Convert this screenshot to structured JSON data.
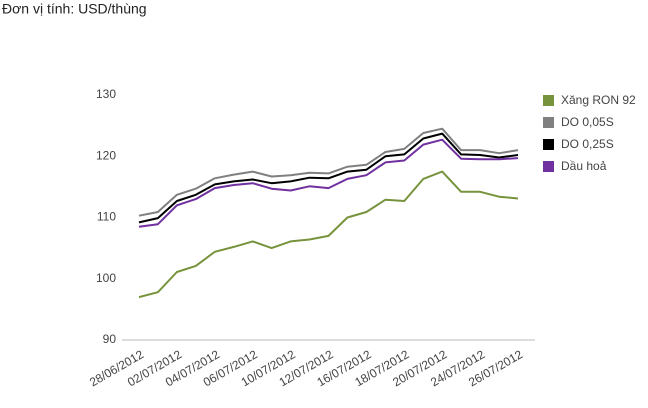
{
  "chart_data": {
    "type": "line",
    "subtitle": "Đơn vị tính: USD/thùng",
    "categories": [
      "28/06/2012",
      null,
      "02/07/2012",
      null,
      "04/07/2012",
      null,
      "06/07/2012",
      null,
      "10/07/2012",
      null,
      "12/07/2012",
      null,
      "16/07/2012",
      null,
      "18/07/2012",
      null,
      "20/07/2012",
      null,
      "24/07/2012",
      null,
      "26/07/2012"
    ],
    "series": [
      {
        "name": "Xăng RON 92",
        "color": "#77933c",
        "values": [
          97.0,
          97.8,
          101.1,
          102.1,
          104.4,
          105.2,
          106.1,
          105.0,
          106.1,
          106.4,
          107.0,
          110.0,
          110.9,
          112.9,
          112.7,
          116.3,
          117.5,
          114.2,
          114.2,
          113.4,
          113.1
        ]
      },
      {
        "name": "DO 0,05S",
        "color": "#808080",
        "values": [
          110.3,
          110.9,
          113.7,
          114.7,
          116.4,
          117.0,
          117.5,
          116.7,
          116.9,
          117.3,
          117.2,
          118.3,
          118.6,
          120.7,
          121.2,
          123.8,
          124.5,
          121.0,
          121.0,
          120.5,
          121.0
        ]
      },
      {
        "name": "DO 0,25S",
        "color": "#000000",
        "values": [
          109.2,
          109.9,
          112.7,
          113.7,
          115.4,
          115.9,
          116.2,
          115.6,
          115.9,
          116.5,
          116.4,
          117.5,
          117.8,
          120.0,
          120.3,
          122.9,
          123.7,
          120.3,
          120.2,
          119.8,
          120.2
        ]
      },
      {
        "name": "Dầu hoả",
        "color": "#7030a0",
        "values": [
          108.5,
          108.9,
          112.0,
          113.0,
          114.8,
          115.3,
          115.6,
          114.7,
          114.4,
          115.1,
          114.8,
          116.3,
          116.9,
          119.0,
          119.3,
          121.9,
          122.7,
          119.6,
          119.5,
          119.5,
          119.7
        ]
      }
    ],
    "ylim": [
      90,
      130
    ],
    "yticks": [
      90,
      100,
      110,
      120,
      130
    ],
    "grid": false,
    "legend": "right"
  }
}
